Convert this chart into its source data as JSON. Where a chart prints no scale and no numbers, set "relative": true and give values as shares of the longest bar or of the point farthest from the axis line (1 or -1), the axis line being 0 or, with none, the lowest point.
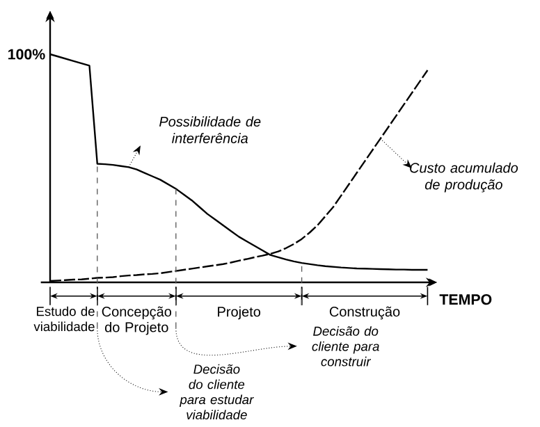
{
  "chart_data": {
    "type": "line",
    "relative": true,
    "xlabel": "TEMPO",
    "tick_labels": false,
    "marker": "none",
    "categories": [
      null,
      null,
      null,
      null,
      null,
      null,
      null,
      null,
      null,
      null,
      null,
      null,
      null,
      null,
      null,
      null,
      null,
      null,
      null,
      null,
      null,
      null,
      null,
      null,
      null,
      null,
      null,
      null,
      null,
      null,
      null,
      null,
      null,
      null,
      null,
      null,
      null,
      null,
      null,
      null,
      null,
      null,
      null,
      null,
      null,
      null,
      null,
      null,
      null
    ],
    "series": [
      {
        "name": "Possibilidade de interferência",
        "color": "#000000",
        "line_style": "solid",
        "values": [
          1,
          0.99,
          0.98,
          0.97,
          0.96,
          0.95,
          0.52,
          0.518,
          0.515,
          0.51,
          0.505,
          0.495,
          0.48,
          0.465,
          0.45,
          0.43,
          0.41,
          0.385,
          0.36,
          0.33,
          0.3,
          0.275,
          0.25,
          0.225,
          0.2,
          0.18,
          0.16,
          0.14,
          0.12,
          0.11,
          0.1,
          0.092,
          0.085,
          0.08,
          0.075,
          0.071,
          0.068,
          0.065,
          0.063,
          0.061,
          0.06,
          0.059,
          0.058,
          0.057,
          0.056,
          0.056,
          0.055,
          0.055,
          0.055
        ]
      },
      {
        "name": "Custo acumulado de produção",
        "color": "#000000",
        "line_style": "dashed",
        "values": [
          0.006,
          0.008,
          0.01,
          0.012,
          0.013,
          0.016,
          0.02,
          0.021,
          0.023,
          0.027,
          0.03,
          0.032,
          0.035,
          0.037,
          0.04,
          0.045,
          0.05,
          0.055,
          0.06,
          0.065,
          0.07,
          0.075,
          0.08,
          0.087,
          0.095,
          0.102,
          0.11,
          0.117,
          0.125,
          0.135,
          0.15,
          0.168,
          0.19,
          0.218,
          0.25,
          0.29,
          0.33,
          0.38,
          0.43,
          0.48,
          0.53,
          0.58,
          0.63,
          0.68,
          0.73,
          0.78,
          0.83,
          0.88,
          0.93
        ]
      }
    ],
    "annotations": [
      "100%",
      "Estudo de viabilidade",
      "Concepção do Projeto",
      "Projeto",
      "Construção",
      "Decisão do cliente para estudar viabilidade",
      "Decisão do cliente para construir"
    ]
  }
}
